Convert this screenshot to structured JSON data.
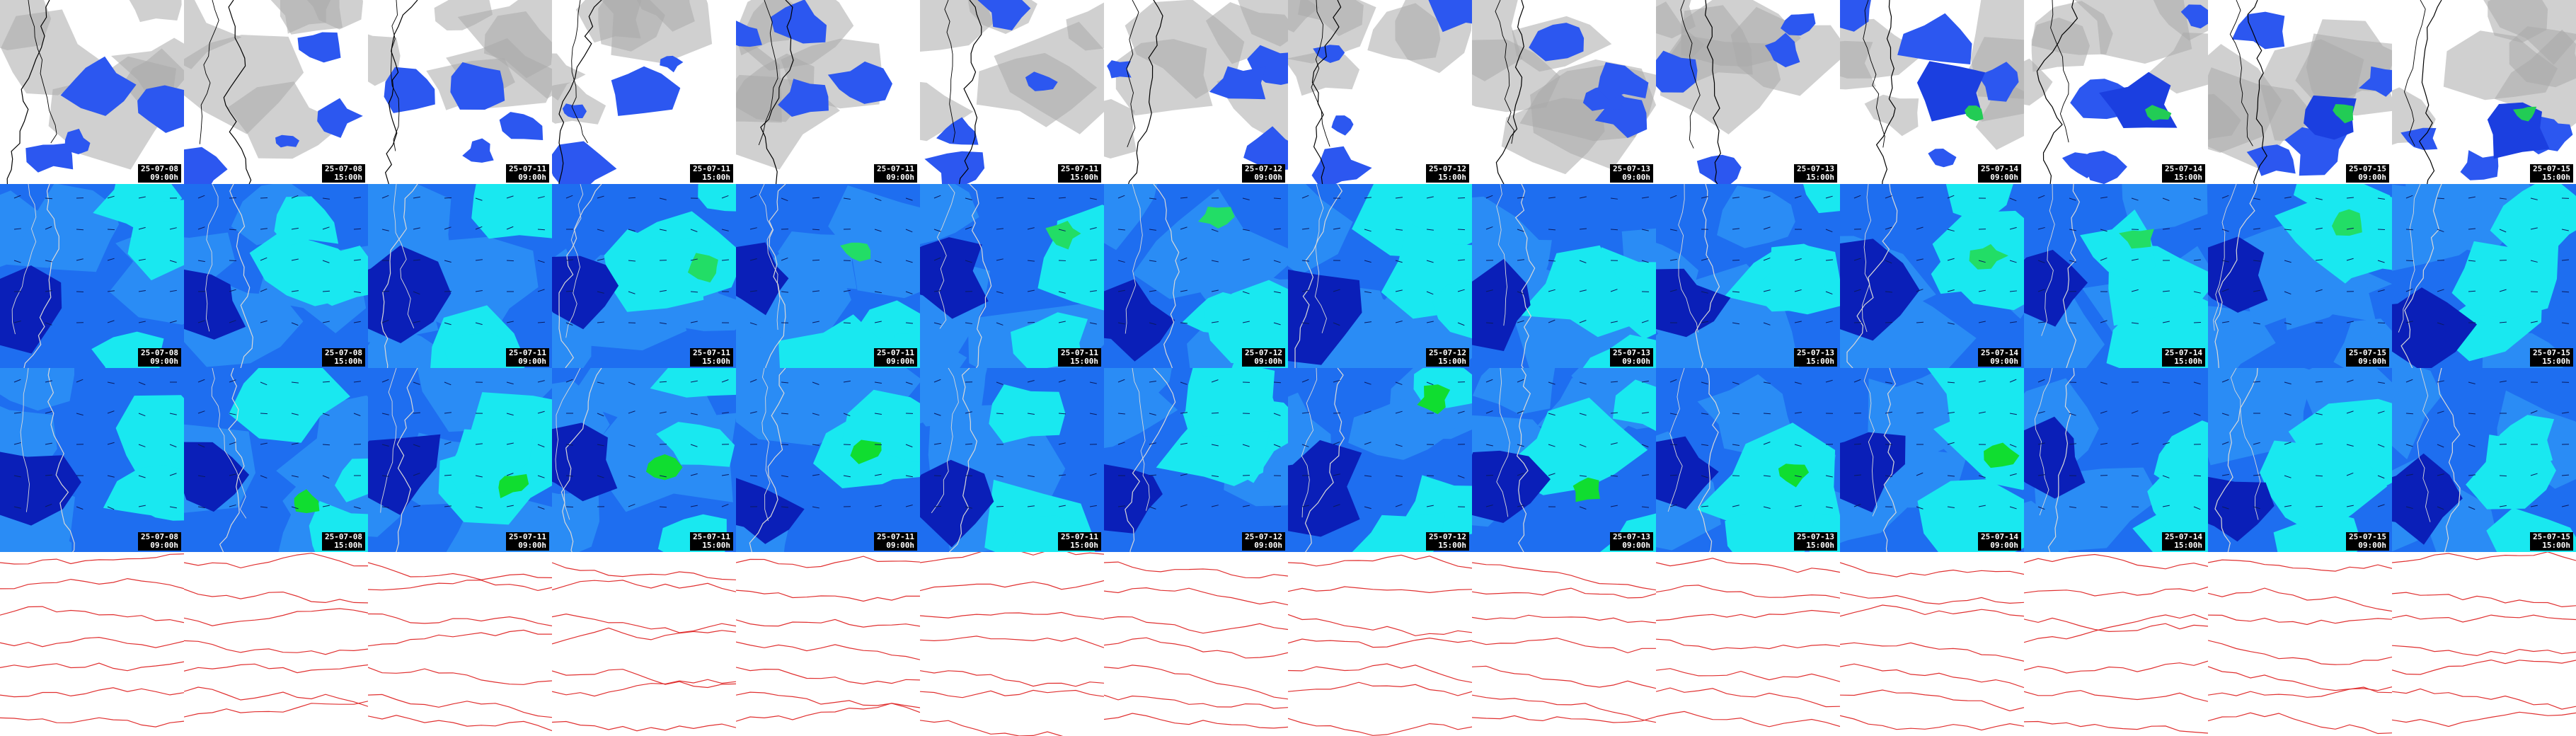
{
  "rows": [
    {
      "id": "precip",
      "palette": {
        "bg": "#ffffff",
        "cloud": "#a9a9a9",
        "light": "#2c57f0",
        "mid": "#1b3fe0",
        "peak": "#22cc55"
      }
    },
    {
      "id": "wind-850",
      "palette": {
        "bg": "#1e6ef0",
        "dark": "#0a1fb8",
        "mid": "#2a8cf5",
        "light": "#19e8f0",
        "peak": "#22dd66"
      }
    },
    {
      "id": "wind-500",
      "palette": {
        "bg": "#1e6ef0",
        "dark": "#0a1fb8",
        "mid": "#2a8cf5",
        "light": "#19e8f0",
        "peak": "#10dd30"
      }
    },
    {
      "id": "pressure",
      "palette": {
        "bg": "#ffffff",
        "line": "#e03030"
      }
    }
  ],
  "columns": [
    {
      "date": "25-07-08",
      "time": "09:00h"
    },
    {
      "date": "25-07-08",
      "time": "15:00h"
    },
    {
      "date": "25-07-11",
      "time": "09:00h"
    },
    {
      "date": "25-07-11",
      "time": "15:00h"
    },
    {
      "date": "25-07-11",
      "time": "09:00h"
    },
    {
      "date": "25-07-11",
      "time": "15:00h"
    },
    {
      "date": "25-07-12",
      "time": "09:00h"
    },
    {
      "date": "25-07-12",
      "time": "15:00h"
    },
    {
      "date": "25-07-13",
      "time": "09:00h"
    },
    {
      "date": "25-07-13",
      "time": "15:00h"
    },
    {
      "date": "25-07-14",
      "time": "09:00h"
    },
    {
      "date": "25-07-14",
      "time": "15:00h"
    },
    {
      "date": "25-07-15",
      "time": "09:00h"
    },
    {
      "date": "25-07-15",
      "time": "15:00h"
    }
  ],
  "coast_color": "#000000"
}
